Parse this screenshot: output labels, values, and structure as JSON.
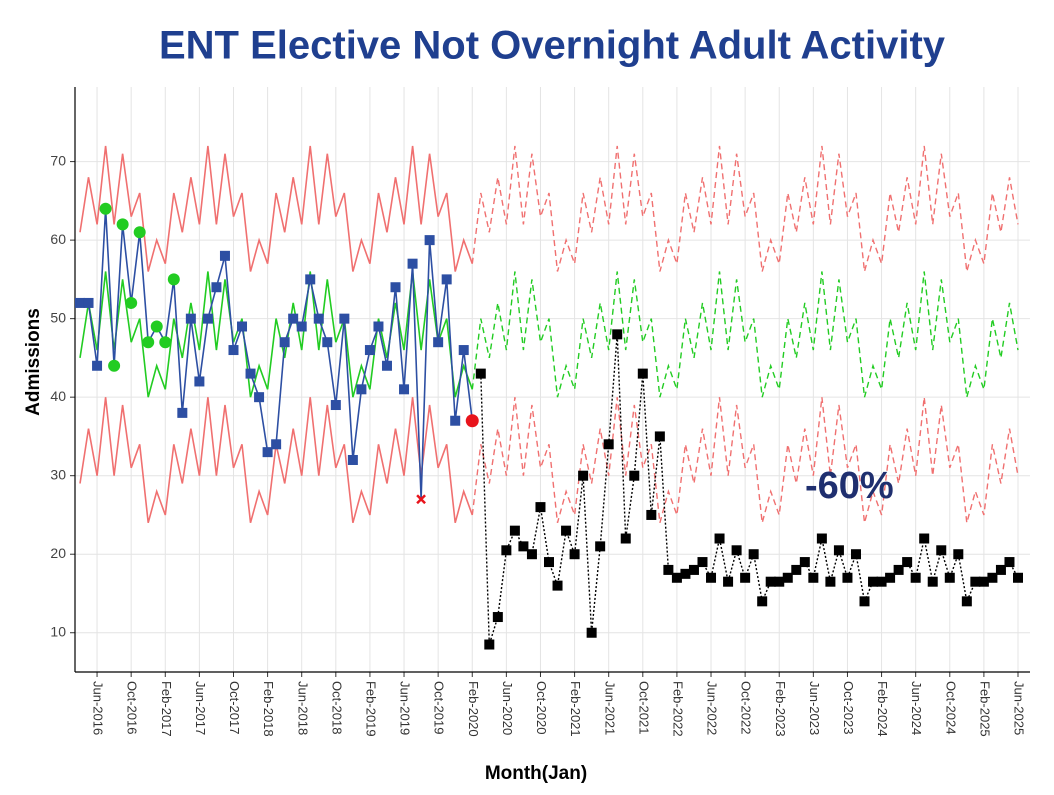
{
  "chart_data": {
    "type": "line",
    "title": "ENT Elective Not Overnight Adult Activity",
    "y_label": "Admissions",
    "x_label": "Month(Jan)",
    "annotation": "-60%",
    "categories": [
      null,
      null,
      "Jun-2016",
      null,
      null,
      null,
      "Oct-2016",
      null,
      null,
      null,
      "Feb-2017",
      null,
      null,
      null,
      "Jun-2017",
      null,
      null,
      null,
      "Oct-2017",
      null,
      null,
      null,
      "Feb-2018",
      null,
      null,
      null,
      "Jun-2018",
      null,
      null,
      null,
      "Oct-2018",
      null,
      null,
      null,
      "Feb-2019",
      null,
      null,
      null,
      "Jun-2019",
      null,
      null,
      null,
      "Oct-2019",
      null,
      null,
      null,
      "Feb-2020",
      null,
      null,
      null,
      "Jun-2020",
      null,
      null,
      null,
      "Oct-2020",
      null,
      null,
      null,
      "Feb-2021",
      null,
      null,
      null,
      "Jun-2021",
      null,
      null,
      null,
      "Oct-2021",
      null,
      null,
      null,
      "Feb-2022",
      null,
      null,
      null,
      "Jun-2022",
      null,
      null,
      null,
      "Oct-2022",
      null,
      null,
      null,
      "Feb-2023",
      null,
      null,
      null,
      "Jun-2023",
      null,
      null,
      null,
      "Oct-2023",
      null,
      null,
      null,
      "Feb-2024",
      null,
      null,
      null,
      "Jun-2024",
      null,
      null,
      null,
      "Oct-2024",
      null,
      null,
      null,
      "Feb-2025",
      null,
      null,
      null,
      "Jun-2025"
    ],
    "ylim": [
      5,
      79.5
    ],
    "yticks": [
      10,
      20,
      30,
      40,
      50,
      60,
      70
    ],
    "grid": true,
    "marker_colors": {
      "square": "#2d4fa3",
      "circle": "#22cc22",
      "cross": "#e8141c",
      "dot": "#e8141c"
    },
    "series": [
      {
        "color": "#f07070",
        "style": "solid",
        "values": [
          61,
          68,
          62,
          72,
          62,
          71,
          63,
          66,
          56,
          60,
          57,
          66,
          61,
          68,
          62,
          72,
          62,
          71,
          63,
          66,
          56,
          60,
          57,
          66,
          61,
          68,
          62,
          72,
          62,
          71,
          63,
          66,
          56,
          60,
          57,
          66,
          61,
          68,
          62,
          72,
          62,
          71,
          63,
          66,
          56,
          60,
          57,
          null,
          null,
          null,
          null,
          null,
          null,
          null,
          null,
          null,
          null,
          null,
          null,
          null,
          null,
          null,
          null,
          null,
          null,
          null,
          null,
          null,
          null,
          null,
          null,
          null,
          null,
          null,
          null,
          null,
          null,
          null,
          null,
          null,
          null,
          null,
          null,
          null,
          null,
          null,
          null,
          null,
          null,
          null,
          null,
          null,
          null,
          null,
          null,
          null,
          null,
          null,
          null,
          null,
          null,
          null,
          null,
          null,
          null,
          null,
          null,
          null,
          null,
          null,
          null
        ]
      },
      {
        "color": "#f07070",
        "style": "dashed",
        "values": [
          null,
          null,
          null,
          null,
          null,
          null,
          null,
          null,
          null,
          null,
          null,
          null,
          null,
          null,
          null,
          null,
          null,
          null,
          null,
          null,
          null,
          null,
          null,
          null,
          null,
          null,
          null,
          null,
          null,
          null,
          null,
          null,
          null,
          null,
          null,
          null,
          null,
          null,
          null,
          null,
          null,
          null,
          null,
          null,
          null,
          null,
          57,
          66,
          61,
          68,
          62,
          72,
          62,
          71,
          63,
          66,
          56,
          60,
          57,
          66,
          61,
          68,
          62,
          72,
          62,
          71,
          63,
          66,
          56,
          60,
          57,
          66,
          61,
          68,
          62,
          72,
          62,
          71,
          63,
          66,
          56,
          60,
          57,
          66,
          61,
          68,
          62,
          72,
          62,
          71,
          63,
          66,
          56,
          60,
          57,
          66,
          61,
          68,
          62,
          72,
          62,
          71,
          63,
          66,
          56,
          60,
          57,
          66,
          61,
          68,
          62
        ]
      },
      {
        "color": "#f07070",
        "style": "solid",
        "values": [
          29,
          36,
          30,
          40,
          30,
          39,
          31,
          34,
          24,
          28,
          25,
          34,
          29,
          36,
          30,
          40,
          30,
          39,
          31,
          34,
          24,
          28,
          25,
          34,
          29,
          36,
          30,
          40,
          30,
          39,
          31,
          34,
          24,
          28,
          25,
          34,
          29,
          36,
          30,
          40,
          30,
          39,
          31,
          34,
          24,
          28,
          25,
          null,
          null,
          null,
          null,
          null,
          null,
          null,
          null,
          null,
          null,
          null,
          null,
          null,
          null,
          null,
          null,
          null,
          null,
          null,
          null,
          null,
          null,
          null,
          null,
          null,
          null,
          null,
          null,
          null,
          null,
          null,
          null,
          null,
          null,
          null,
          null,
          null,
          null,
          null,
          null,
          null,
          null,
          null,
          null,
          null,
          null,
          null,
          null,
          null,
          null,
          null,
          null,
          null,
          null,
          null,
          null,
          null,
          null,
          null,
          null,
          null,
          null,
          null,
          null
        ]
      },
      {
        "color": "#f07070",
        "style": "dashed",
        "values": [
          null,
          null,
          null,
          null,
          null,
          null,
          null,
          null,
          null,
          null,
          null,
          null,
          null,
          null,
          null,
          null,
          null,
          null,
          null,
          null,
          null,
          null,
          null,
          null,
          null,
          null,
          null,
          null,
          null,
          null,
          null,
          null,
          null,
          null,
          null,
          null,
          null,
          null,
          null,
          null,
          null,
          null,
          null,
          null,
          null,
          null,
          25,
          34,
          29,
          36,
          30,
          40,
          30,
          39,
          31,
          34,
          24,
          28,
          25,
          34,
          29,
          36,
          30,
          40,
          30,
          39,
          31,
          34,
          24,
          28,
          25,
          34,
          29,
          36,
          30,
          40,
          30,
          39,
          31,
          34,
          24,
          28,
          25,
          34,
          29,
          36,
          30,
          40,
          30,
          39,
          31,
          34,
          24,
          28,
          25,
          34,
          29,
          36,
          30,
          40,
          30,
          39,
          31,
          34,
          24,
          28,
          25,
          34,
          29,
          36,
          30
        ]
      },
      {
        "color": "#22cc22",
        "style": "solid",
        "values": [
          45,
          52,
          46,
          56,
          46,
          55,
          47,
          50,
          40,
          44,
          41,
          50,
          45,
          52,
          46,
          56,
          46,
          55,
          47,
          50,
          40,
          44,
          41,
          50,
          45,
          52,
          46,
          56,
          46,
          55,
          47,
          50,
          40,
          44,
          41,
          50,
          45,
          52,
          46,
          56,
          46,
          55,
          47,
          50,
          40,
          44,
          41,
          null,
          null,
          null,
          null,
          null,
          null,
          null,
          null,
          null,
          null,
          null,
          null,
          null,
          null,
          null,
          null,
          null,
          null,
          null,
          null,
          null,
          null,
          null,
          null,
          null,
          null,
          null,
          null,
          null,
          null,
          null,
          null,
          null,
          null,
          null,
          null,
          null,
          null,
          null,
          null,
          null,
          null,
          null,
          null,
          null,
          null,
          null,
          null,
          null,
          null,
          null,
          null,
          null,
          null,
          null,
          null,
          null,
          null,
          null,
          null,
          null,
          null,
          null,
          null
        ]
      },
      {
        "color": "#22cc22",
        "style": "dashed",
        "values": [
          null,
          null,
          null,
          null,
          null,
          null,
          null,
          null,
          null,
          null,
          null,
          null,
          null,
          null,
          null,
          null,
          null,
          null,
          null,
          null,
          null,
          null,
          null,
          null,
          null,
          null,
          null,
          null,
          null,
          null,
          null,
          null,
          null,
          null,
          null,
          null,
          null,
          null,
          null,
          null,
          null,
          null,
          null,
          null,
          null,
          null,
          41,
          50,
          45,
          52,
          46,
          56,
          46,
          55,
          47,
          50,
          40,
          44,
          41,
          50,
          45,
          52,
          46,
          56,
          46,
          55,
          47,
          50,
          40,
          44,
          41,
          50,
          45,
          52,
          46,
          56,
          46,
          55,
          47,
          50,
          40,
          44,
          41,
          50,
          45,
          52,
          46,
          56,
          46,
          55,
          47,
          50,
          40,
          44,
          41,
          50,
          45,
          52,
          46,
          56,
          46,
          55,
          47,
          50,
          40,
          44,
          41,
          50,
          45,
          52,
          46
        ]
      },
      {
        "color": "#2d4fa3",
        "style": "solid",
        "values": [
          52,
          52,
          44,
          64,
          44,
          62,
          52,
          61,
          47,
          49,
          47,
          55,
          38,
          50,
          42,
          50,
          54,
          58,
          46,
          49,
          43,
          40,
          33,
          34,
          47,
          50,
          49,
          55,
          50,
          47,
          39,
          50,
          32,
          41,
          46,
          49,
          44,
          54,
          41,
          57,
          27,
          60,
          47,
          55,
          37,
          46,
          37,
          null,
          null,
          null,
          null,
          null,
          null,
          null,
          null,
          null,
          null,
          null,
          null,
          null,
          null,
          null,
          null,
          null,
          null,
          null,
          null,
          null,
          null,
          null,
          null,
          null,
          null,
          null,
          null,
          null,
          null,
          null,
          null,
          null,
          null,
          null,
          null,
          null,
          null,
          null,
          null,
          null,
          null,
          null,
          null,
          null,
          null,
          null,
          null,
          null,
          null,
          null,
          null,
          null,
          null,
          null,
          null,
          null,
          null,
          null,
          null,
          null,
          null,
          null,
          null
        ],
        "markers": [
          "square",
          "square",
          "square",
          "circle",
          "circle",
          "circle",
          "circle",
          "circle",
          "circle",
          "circle",
          "circle",
          "circle",
          "square",
          "square",
          "square",
          "square",
          "square",
          "square",
          "square",
          "square",
          "square",
          "square",
          "square",
          "square",
          "square",
          "square",
          "square",
          "square",
          "square",
          "square",
          "square",
          "square",
          "square",
          "square",
          "square",
          "square",
          "square",
          "square",
          "square",
          "square",
          "cross",
          "square",
          "square",
          "square",
          "square",
          "square",
          "dot",
          null,
          null,
          null,
          null,
          null,
          null,
          null,
          null,
          null,
          null,
          null,
          null,
          null,
          null,
          null,
          null,
          null,
          null,
          null,
          null,
          null,
          null,
          null,
          null,
          null,
          null,
          null,
          null,
          null,
          null,
          null,
          null,
          null,
          null,
          null,
          null,
          null,
          null,
          null,
          null,
          null,
          null,
          null,
          null,
          null,
          null,
          null,
          null,
          null,
          null,
          null,
          null,
          null,
          null,
          null,
          null,
          null,
          null,
          null,
          null,
          null,
          null,
          null,
          null,
          null,
          null,
          null,
          null
        ]
      },
      {
        "color": "#000000",
        "style": "dotted",
        "marker": "square",
        "values": [
          null,
          null,
          null,
          null,
          null,
          null,
          null,
          null,
          null,
          null,
          null,
          null,
          null,
          null,
          null,
          null,
          null,
          null,
          null,
          null,
          null,
          null,
          null,
          null,
          null,
          null,
          null,
          null,
          null,
          null,
          null,
          null,
          null,
          null,
          null,
          null,
          null,
          null,
          null,
          null,
          null,
          null,
          null,
          null,
          null,
          null,
          null,
          43,
          8.5,
          12,
          20.5,
          23,
          21,
          20,
          26,
          19,
          16,
          23,
          20,
          30,
          10,
          21,
          34,
          48,
          22,
          30,
          43,
          25,
          35,
          18,
          17,
          17.5,
          18,
          19,
          17,
          22,
          16.5,
          20.5,
          17,
          20,
          14,
          16.5,
          16.5,
          17,
          18,
          19,
          17,
          22,
          16.5,
          20.5,
          17,
          20,
          14,
          16.5,
          16.5,
          17,
          18,
          19,
          17,
          22,
          16.5,
          20.5,
          17,
          20,
          14,
          16.5,
          16.5,
          17,
          18,
          19,
          17
        ]
      }
    ]
  }
}
